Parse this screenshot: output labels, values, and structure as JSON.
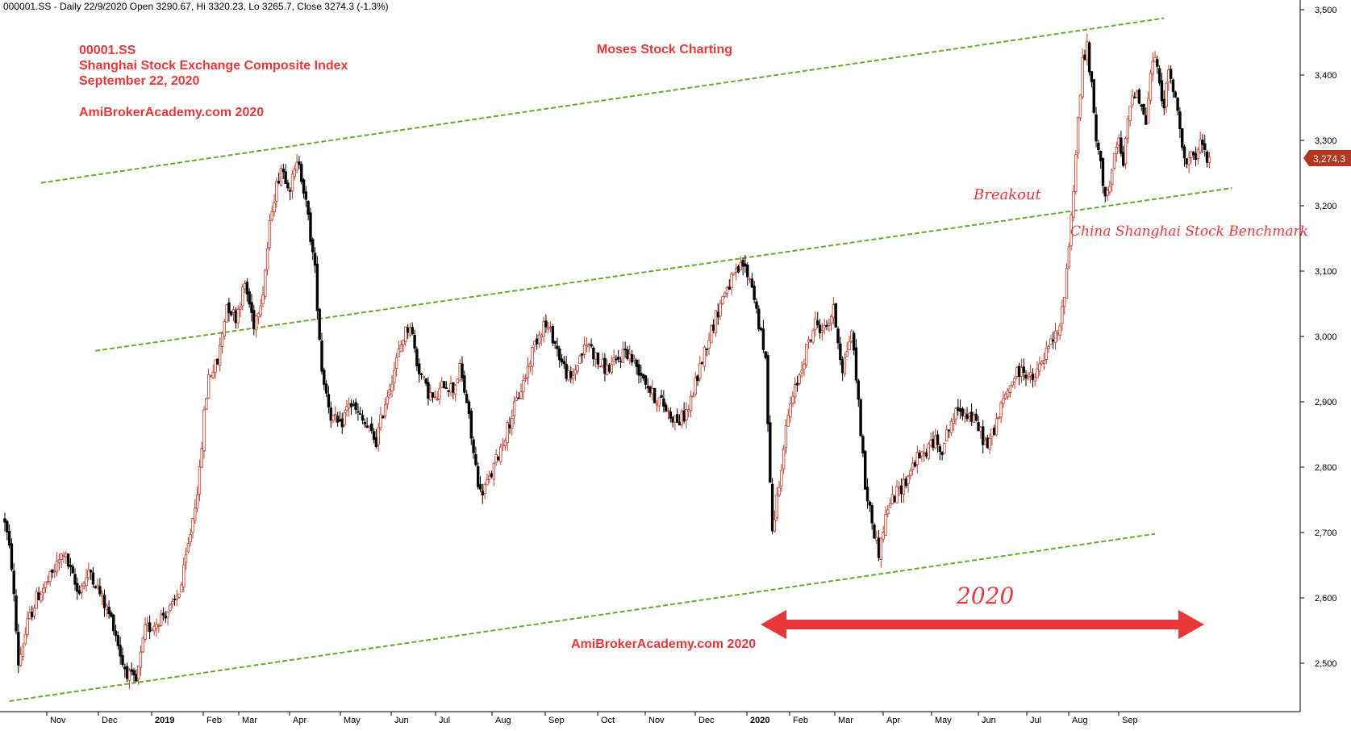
{
  "header": {
    "text": "000001.SS - Daily 22/9/2020 Open 3290.67, Hi 3320.23, Lo 3265.7, Close 3274.3 (-1.3%)"
  },
  "annotations": {
    "ticker": "00001.SS",
    "exchange": "Shanghai Stock Exchange Composite Index",
    "date": "September 22, 2020",
    "watermark_top": "AmiBrokerAcademy.com  2020",
    "brand": "Moses Stock Charting",
    "breakout": "Breakout",
    "benchmark": "China Shanghai Stock Benchmark",
    "year_label": "2020",
    "watermark_bottom": "AmiBrokerAcademy.com  2020"
  },
  "colors": {
    "text_red": "#e8383a",
    "trendline_green": "#6aaa2a",
    "candle_up": "#c0392b",
    "candle_down": "#000000",
    "axis": "#000000",
    "price_tag_bg": "#b5361f"
  },
  "chart_data": {
    "type": "candlestick",
    "title": "",
    "ylim": [
      2430,
      3520
    ],
    "y_ticks": [
      2500,
      2600,
      2700,
      2800,
      2900,
      3000,
      3100,
      3200,
      3300,
      3400,
      3500
    ],
    "y_tick_labels": [
      "2,500",
      "2,600",
      "2,700",
      "2,800",
      "2,900",
      "3,000",
      "3,100",
      "3,200",
      "3,300",
      "3,400",
      "3,500"
    ],
    "x_tick_labels": [
      "Nov",
      "Dec",
      "2019",
      "Feb",
      "Mar",
      "Apr",
      "May",
      "Jun",
      "Jul",
      "Aug",
      "Sep",
      "Oct",
      "Nov",
      "Dec",
      "2020",
      "Feb",
      "Mar",
      "Apr",
      "May",
      "Jun",
      "Jul",
      "Aug",
      "Sep"
    ],
    "last_price_label": "3,274.3",
    "last_price": 3274.3,
    "price_path": [
      [
        0,
        2720
      ],
      [
        3,
        2650
      ],
      [
        6,
        2500
      ],
      [
        10,
        2560
      ],
      [
        14,
        2600
      ],
      [
        20,
        2630
      ],
      [
        26,
        2670
      ],
      [
        32,
        2610
      ],
      [
        38,
        2640
      ],
      [
        44,
        2590
      ],
      [
        48,
        2560
      ],
      [
        52,
        2500
      ],
      [
        55,
        2480
      ],
      [
        58,
        2470
      ],
      [
        62,
        2550
      ],
      [
        66,
        2560
      ],
      [
        70,
        2575
      ],
      [
        74,
        2585
      ],
      [
        78,
        2620
      ],
      [
        82,
        2700
      ],
      [
        86,
        2790
      ],
      [
        88,
        2880
      ],
      [
        90,
        2940
      ],
      [
        94,
        2960
      ],
      [
        98,
        3050
      ],
      [
        102,
        3030
      ],
      [
        106,
        3080
      ],
      [
        110,
        3020
      ],
      [
        114,
        3070
      ],
      [
        118,
        3200
      ],
      [
        122,
        3260
      ],
      [
        126,
        3230
      ],
      [
        130,
        3270
      ],
      [
        134,
        3180
      ],
      [
        137,
        3100
      ],
      [
        140,
        2950
      ],
      [
        144,
        2880
      ],
      [
        148,
        2860
      ],
      [
        152,
        2900
      ],
      [
        156,
        2880
      ],
      [
        160,
        2860
      ],
      [
        164,
        2840
      ],
      [
        168,
        2900
      ],
      [
        172,
        2950
      ],
      [
        176,
        3000
      ],
      [
        179,
        3020
      ],
      [
        182,
        2960
      ],
      [
        186,
        2920
      ],
      [
        190,
        2900
      ],
      [
        194,
        2930
      ],
      [
        198,
        2920
      ],
      [
        201,
        2950
      ],
      [
        204,
        2900
      ],
      [
        207,
        2820
      ],
      [
        210,
        2760
      ],
      [
        214,
        2780
      ],
      [
        218,
        2820
      ],
      [
        222,
        2860
      ],
      [
        226,
        2900
      ],
      [
        230,
        2940
      ],
      [
        234,
        2990
      ],
      [
        238,
        3020
      ],
      [
        242,
        3000
      ],
      [
        246,
        2960
      ],
      [
        250,
        2930
      ],
      [
        254,
        2970
      ],
      [
        258,
        2990
      ],
      [
        262,
        2960
      ],
      [
        266,
        2950
      ],
      [
        270,
        2960
      ],
      [
        274,
        2980
      ],
      [
        278,
        2960
      ],
      [
        282,
        2940
      ],
      [
        286,
        2910
      ],
      [
        290,
        2900
      ],
      [
        294,
        2880
      ],
      [
        298,
        2870
      ],
      [
        302,
        2890
      ],
      [
        306,
        2940
      ],
      [
        310,
        2990
      ],
      [
        314,
        3030
      ],
      [
        318,
        3070
      ],
      [
        322,
        3090
      ],
      [
        326,
        3110
      ],
      [
        330,
        3080
      ],
      [
        333,
        3020
      ],
      [
        336,
        2960
      ],
      [
        339,
        2700
      ],
      [
        342,
        2780
      ],
      [
        346,
        2880
      ],
      [
        350,
        2930
      ],
      [
        354,
        2980
      ],
      [
        358,
        3020
      ],
      [
        362,
        3010
      ],
      [
        366,
        3040
      ],
      [
        370,
        2950
      ],
      [
        374,
        3010
      ],
      [
        377,
        2900
      ],
      [
        380,
        2770
      ],
      [
        384,
        2700
      ],
      [
        386,
        2670
      ],
      [
        390,
        2740
      ],
      [
        394,
        2760
      ],
      [
        398,
        2780
      ],
      [
        402,
        2810
      ],
      [
        406,
        2820
      ],
      [
        410,
        2840
      ],
      [
        414,
        2830
      ],
      [
        418,
        2870
      ],
      [
        422,
        2890
      ],
      [
        426,
        2880
      ],
      [
        430,
        2860
      ],
      [
        434,
        2830
      ],
      [
        438,
        2870
      ],
      [
        442,
        2910
      ],
      [
        446,
        2940
      ],
      [
        450,
        2950
      ],
      [
        454,
        2930
      ],
      [
        458,
        2960
      ],
      [
        462,
        2990
      ],
      [
        466,
        3010
      ],
      [
        468,
        3070
      ],
      [
        470,
        3140
      ],
      [
        472,
        3230
      ],
      [
        474,
        3330
      ],
      [
        476,
        3420
      ],
      [
        478,
        3440
      ],
      [
        480,
        3380
      ],
      [
        482,
        3300
      ],
      [
        484,
        3260
      ],
      [
        486,
        3220
      ],
      [
        488,
        3230
      ],
      [
        490,
        3270
      ],
      [
        492,
        3300
      ],
      [
        494,
        3260
      ],
      [
        496,
        3330
      ],
      [
        498,
        3370
      ],
      [
        500,
        3380
      ],
      [
        502,
        3350
      ],
      [
        504,
        3330
      ],
      [
        506,
        3400
      ],
      [
        508,
        3430
      ],
      [
        510,
        3380
      ],
      [
        512,
        3360
      ],
      [
        514,
        3400
      ],
      [
        516,
        3380
      ],
      [
        518,
        3340
      ],
      [
        520,
        3300
      ],
      [
        522,
        3260
      ],
      [
        524,
        3280
      ],
      [
        526,
        3260
      ],
      [
        528,
        3300
      ],
      [
        530,
        3280
      ],
      [
        532,
        3274.3
      ]
    ],
    "trendlines": [
      {
        "name": "upper-channel",
        "x": [
          16,
          512
        ],
        "y": [
          3235,
          3487
        ]
      },
      {
        "name": "middle-channel",
        "x": [
          40,
          542
        ],
        "y": [
          2978,
          3227
        ]
      },
      {
        "name": "lower-channel",
        "x": [
          2,
          508
        ],
        "y": [
          2442,
          2698
        ]
      }
    ],
    "index_range": [
      0,
      560
    ]
  }
}
